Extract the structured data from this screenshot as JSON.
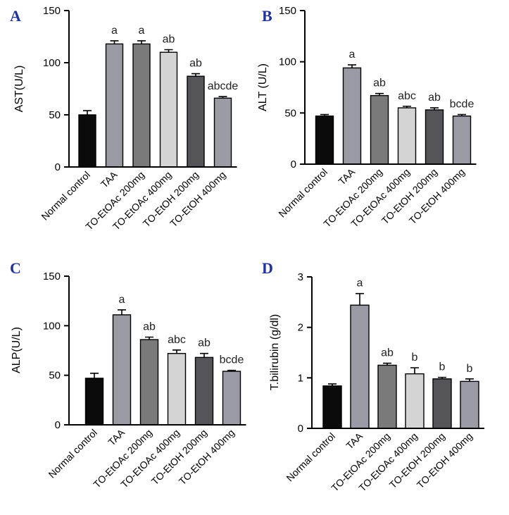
{
  "chart_data": [
    {
      "panel": "A",
      "type": "bar",
      "ylabel": "AST(U/L)",
      "ylim": [
        0,
        150
      ],
      "yticks": [
        0,
        50,
        100,
        150
      ],
      "categories": [
        "Normal control",
        "TAA",
        "TO-EtOAc 200mg",
        "TO-EtOAc 400mg",
        "TO-EtOH 200mg",
        "TO-EtOH 400mg"
      ],
      "values": [
        50,
        118,
        118,
        110,
        87,
        66
      ],
      "errors": [
        4,
        3,
        3,
        2.5,
        2.5,
        1.5
      ],
      "significance": [
        "",
        "a",
        "a",
        "ab",
        "ab",
        "abcde"
      ]
    },
    {
      "panel": "B",
      "type": "bar",
      "ylabel": "ALT (U/L)",
      "ylim": [
        0,
        150
      ],
      "yticks": [
        0,
        50,
        100,
        150
      ],
      "categories": [
        "Normal control",
        "TAA",
        "TO-EtOAc 200mg",
        "TO-EtOAc 400mg",
        "TO-EtOH 200mg",
        "TO-EtOH 400mg"
      ],
      "values": [
        47,
        94,
        67,
        55,
        53,
        47
      ],
      "errors": [
        1.5,
        3,
        2,
        1.5,
        2,
        1.5
      ],
      "significance": [
        "",
        "a",
        "ab",
        "abc",
        "ab",
        "bcde"
      ]
    },
    {
      "panel": "C",
      "type": "bar",
      "ylabel": "ALP(U/L)",
      "ylim": [
        0,
        150
      ],
      "yticks": [
        0,
        50,
        100,
        150
      ],
      "categories": [
        "Normal control",
        "TAA",
        "TO-EtOAc 200mg",
        "TO-EtOAc 400mg",
        "TO-EtOH 200mg",
        "TO-EtOH 400mg"
      ],
      "values": [
        47,
        111,
        86,
        72,
        68,
        54
      ],
      "errors": [
        5,
        5,
        2.5,
        3.5,
        4,
        1
      ],
      "significance": [
        "",
        "a",
        "ab",
        "abc",
        "ab",
        "bcde"
      ]
    },
    {
      "panel": "D",
      "type": "bar",
      "ylabel": "T.bilirubin (g/dl)",
      "ylim": [
        0,
        3
      ],
      "yticks": [
        0,
        1,
        2,
        3
      ],
      "categories": [
        "Normal control",
        "TAA",
        "TO-EtOAc 200mg",
        "TO-EtOAc 400mg",
        "TO-EtOH 200mg",
        "TO-EtOH 400mg"
      ],
      "values": [
        0.84,
        2.44,
        1.25,
        1.08,
        0.98,
        0.93
      ],
      "errors": [
        0.04,
        0.23,
        0.04,
        0.12,
        0.03,
        0.05
      ],
      "significance": [
        "",
        "a",
        "ab",
        "b",
        "b",
        "b"
      ]
    }
  ],
  "colors": [
    "#0b0b0b",
    "#9a9aa5",
    "#7a7a7a",
    "#d4d4d4",
    "#555559",
    "#9b9ba6"
  ]
}
